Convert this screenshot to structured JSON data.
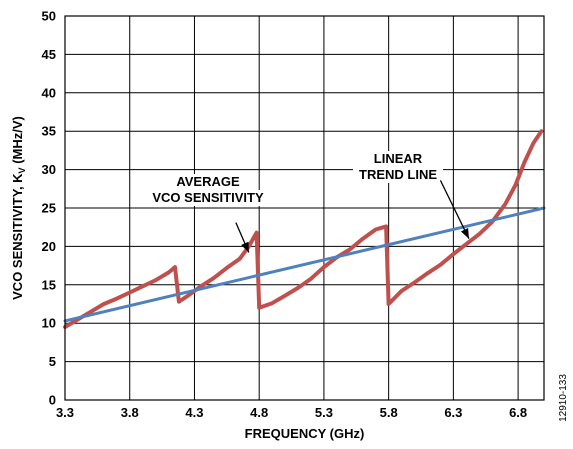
{
  "chart_data": {
    "type": "line",
    "xlabel": "FREQUENCY (GHz)",
    "ylabel_main": "VCO SENSITIVITY, K",
    "ylabel_sub": "V",
    "ylabel_unit": " (MHz/V)",
    "xlim": [
      3.3,
      7.0
    ],
    "ylim": [
      0,
      50
    ],
    "x_ticks": [
      3.3,
      3.8,
      4.3,
      4.8,
      5.3,
      5.8,
      6.3,
      6.8
    ],
    "x_tick_labels": [
      "3.3",
      "3.8",
      "4.3",
      "4.8",
      "5.3",
      "5.8",
      "6.3",
      "6.8"
    ],
    "y_ticks": [
      0,
      5,
      10,
      15,
      20,
      25,
      30,
      35,
      40,
      45,
      50
    ],
    "y_tick_labels": [
      "0",
      "5",
      "10",
      "15",
      "20",
      "25",
      "30",
      "35",
      "40",
      "45",
      "50"
    ],
    "grid": true,
    "series": [
      {
        "color": "#c0504d",
        "points": [
          [
            3.3,
            9.5
          ],
          [
            3.4,
            10.5
          ],
          [
            3.5,
            11.5
          ],
          [
            3.6,
            12.5
          ],
          [
            3.7,
            13.2
          ],
          [
            3.8,
            14.0
          ],
          [
            3.9,
            14.8
          ],
          [
            4.0,
            15.6
          ],
          [
            4.1,
            16.6
          ],
          [
            4.15,
            17.3
          ],
          [
            4.18,
            12.8
          ],
          [
            4.25,
            13.6
          ],
          [
            4.35,
            14.8
          ],
          [
            4.45,
            15.9
          ],
          [
            4.55,
            17.2
          ],
          [
            4.65,
            18.4
          ],
          [
            4.72,
            20.0
          ],
          [
            4.78,
            21.8
          ],
          [
            4.8,
            12.0
          ],
          [
            4.9,
            12.6
          ],
          [
            5.0,
            13.6
          ],
          [
            5.1,
            14.6
          ],
          [
            5.2,
            15.8
          ],
          [
            5.3,
            17.3
          ],
          [
            5.4,
            18.6
          ],
          [
            5.5,
            19.6
          ],
          [
            5.6,
            21.0
          ],
          [
            5.7,
            22.2
          ],
          [
            5.78,
            22.6
          ],
          [
            5.8,
            12.5
          ],
          [
            5.9,
            14.2
          ],
          [
            6.0,
            15.3
          ],
          [
            6.1,
            16.5
          ],
          [
            6.2,
            17.6
          ],
          [
            6.3,
            19.0
          ],
          [
            6.4,
            20.3
          ],
          [
            6.5,
            21.6
          ],
          [
            6.6,
            23.2
          ],
          [
            6.7,
            25.5
          ],
          [
            6.78,
            28.0
          ],
          [
            6.85,
            31.0
          ],
          [
            6.92,
            33.5
          ],
          [
            6.98,
            35.0
          ]
        ]
      },
      {
        "color": "#4f81bd",
        "points": [
          [
            3.3,
            10.3
          ],
          [
            7.0,
            25.0
          ]
        ]
      }
    ],
    "annotations": [
      {
        "lines": [
          "AVERAGE",
          "VCO SENSITIVITY"
        ],
        "arrow_from": [
          4.62,
          23.1
        ],
        "arrow_to": [
          4.72,
          19.2
        ]
      },
      {
        "lines": [
          "LINEAR",
          "TREND LINE"
        ],
        "arrow_from": [
          6.2,
          28.6
        ],
        "arrow_to": [
          6.42,
          21.0
        ]
      }
    ]
  },
  "figure_number": "12910-133"
}
